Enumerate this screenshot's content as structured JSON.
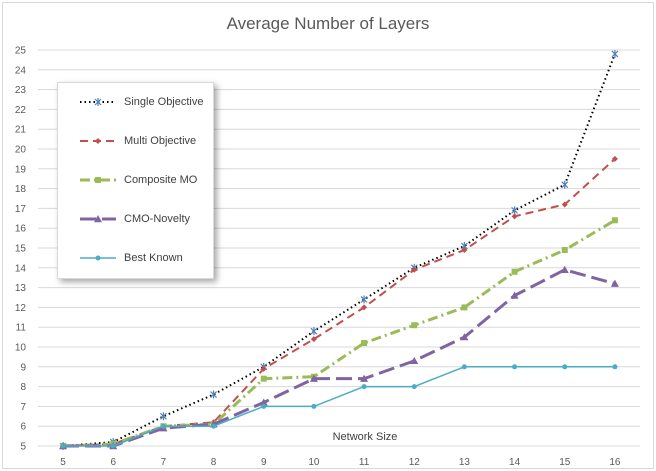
{
  "chart_data": {
    "type": "line",
    "title": "Average Number of Layers",
    "xlabel": "Network Size",
    "ylabel": "",
    "x": [
      5,
      6,
      7,
      8,
      9,
      10,
      11,
      12,
      13,
      14,
      15,
      16
    ],
    "ylim": [
      5,
      25
    ],
    "yticks": [
      5,
      6,
      7,
      8,
      9,
      10,
      11,
      12,
      13,
      14,
      15,
      16,
      17,
      18,
      19,
      20,
      21,
      22,
      23,
      24,
      25
    ],
    "grid": "horizontal",
    "legend_position": "top-left",
    "series": [
      {
        "name": "Single Objective",
        "values": [
          5.0,
          5.2,
          6.5,
          7.6,
          9.0,
          10.8,
          12.4,
          14.0,
          15.1,
          16.9,
          18.2,
          24.8
        ],
        "color": "#000000",
        "dash": "dotted",
        "marker": "star"
      },
      {
        "name": "Multi Objective",
        "values": [
          5.0,
          5.1,
          6.0,
          6.2,
          8.9,
          10.4,
          12.0,
          13.9,
          14.9,
          16.6,
          17.2,
          19.5
        ],
        "color": "#c0504d",
        "dash": "dashed",
        "marker": "diamond"
      },
      {
        "name": "Composite MO",
        "values": [
          5.0,
          5.1,
          6.0,
          6.1,
          8.4,
          8.5,
          10.2,
          11.1,
          12.0,
          13.8,
          14.9,
          16.4
        ],
        "color": "#9bbb59",
        "dash": "dashdot",
        "marker": "square"
      },
      {
        "name": "CMO-Novelty",
        "values": [
          5.0,
          5.0,
          5.9,
          6.1,
          7.2,
          8.4,
          8.4,
          9.3,
          10.5,
          12.6,
          13.9,
          13.2
        ],
        "color": "#8064a2",
        "dash": "longdash",
        "marker": "triangle"
      },
      {
        "name": "Best Known",
        "values": [
          5,
          5,
          6,
          6,
          7,
          7,
          8,
          8,
          9,
          9,
          9,
          9
        ],
        "color": "#4bacc6",
        "dash": "solid",
        "marker": "circle"
      }
    ]
  }
}
